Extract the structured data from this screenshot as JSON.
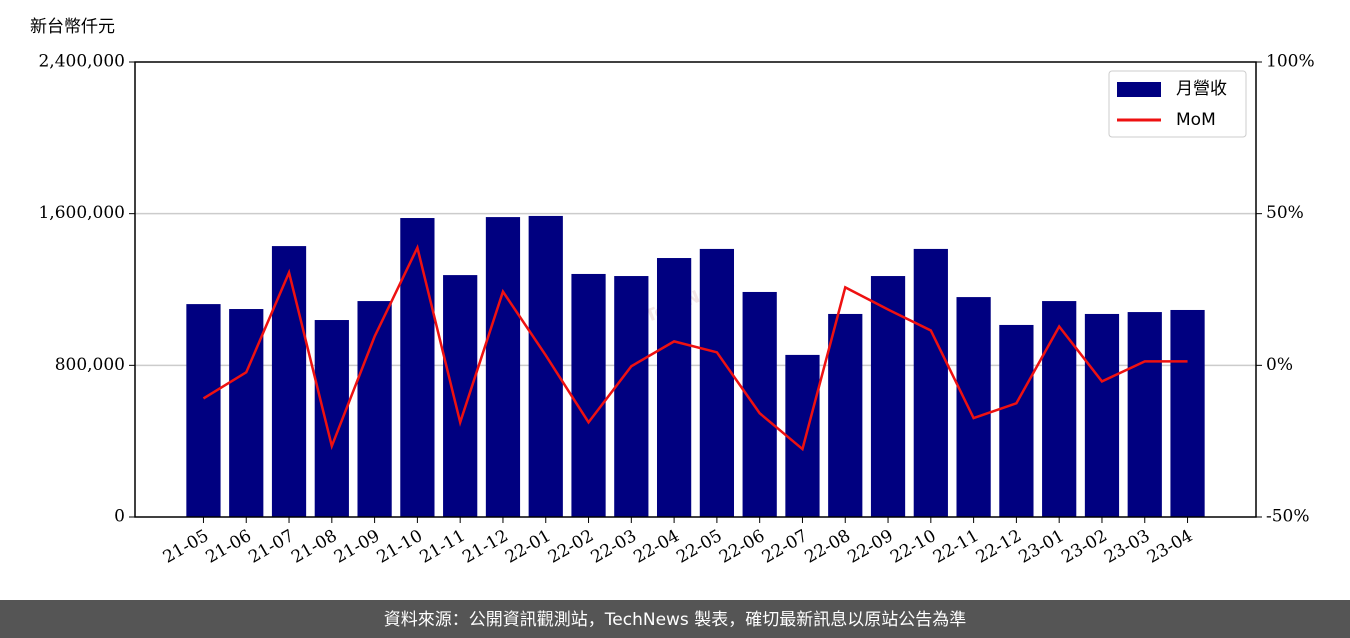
{
  "chart_data": {
    "type": "bar_line",
    "y_label": "新台幣仟元",
    "watermark": "TechNews",
    "footer": "資料來源：公開資訊觀測站，TechNews 製表，確切最新訊息以原站公告為準",
    "categories": [
      "21-05",
      "21-06",
      "21-07",
      "21-08",
      "21-09",
      "21-10",
      "21-11",
      "21-12",
      "22-01",
      "22-02",
      "22-03",
      "22-04",
      "22-05",
      "22-06",
      "22-07",
      "22-08",
      "22-09",
      "22-10",
      "22-11",
      "22-12",
      "23-01",
      "23-02",
      "23-03",
      "23-04"
    ],
    "series": [
      {
        "name": "月營收",
        "color": "#000080",
        "type": "bar",
        "values": [
          1123000,
          1097000,
          1429000,
          1039000,
          1139000,
          1577000,
          1276000,
          1582000,
          1588000,
          1282000,
          1271000,
          1366000,
          1414000,
          1187000,
          855000,
          1071000,
          1271000,
          1414000,
          1160000,
          1013000,
          1139000,
          1071000,
          1081000,
          1092000
        ]
      },
      {
        "name": "MoM",
        "color": "#ee1111",
        "type": "line",
        "axis": "y2",
        "values": [
          -10.9,
          -2.3,
          30.6,
          -26.6,
          9.5,
          38.8,
          -18.8,
          24.3,
          3.3,
          -18.8,
          -0.3,
          7.9,
          4.3,
          -15.8,
          -27.6,
          25.7,
          18.4,
          11.5,
          -17.4,
          -12.5,
          12.8,
          -5.3,
          1.3,
          1.3
        ]
      }
    ],
    "ylim": [
      0,
      2400000
    ],
    "yticks": [
      0,
      {
        "value": 800000,
        "label": "800,000"
      },
      {
        "value": 1600000,
        "label": "1,600,000"
      },
      {
        "value": 2400000,
        "label": "2,400,000"
      }
    ],
    "y2lim": [
      -50,
      100
    ],
    "y2ticks": [
      {
        "value": -50,
        "label": "-50%"
      },
      {
        "value": 0,
        "label": "0%"
      },
      {
        "value": 50,
        "label": "50%"
      },
      {
        "value": 100,
        "label": "100%"
      }
    ],
    "grid": true,
    "legend": "upper right"
  }
}
